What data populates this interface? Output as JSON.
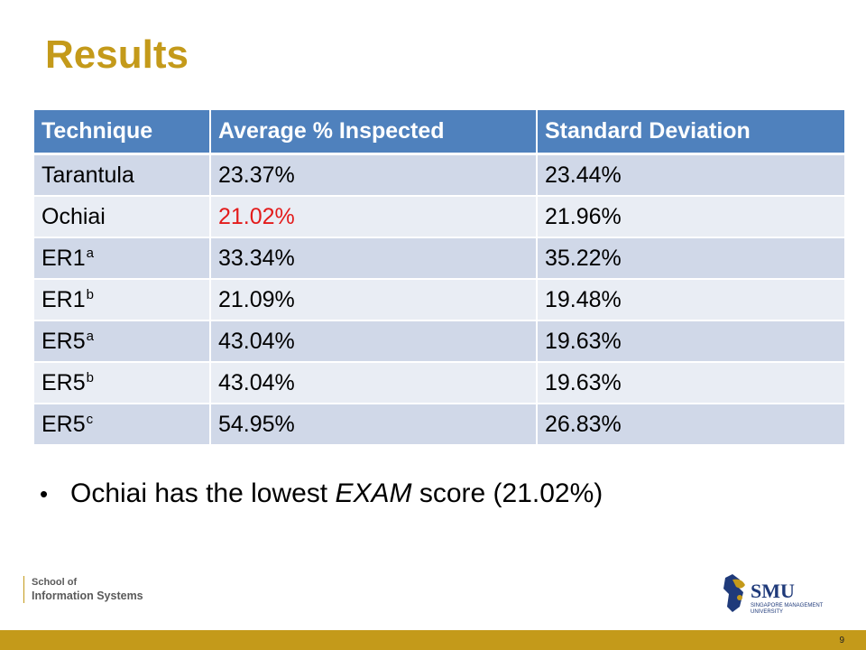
{
  "slide": {
    "title": "Results",
    "page_number": "9"
  },
  "table": {
    "headers": [
      "Technique",
      "Average % Inspected",
      "Standard Deviation"
    ],
    "rows": [
      {
        "technique": "Tarantula",
        "sup": "",
        "average": "23.37%",
        "stddev": "23.44%"
      },
      {
        "technique": "Ochiai",
        "sup": "",
        "average": "21.02%",
        "stddev": "21.96%"
      },
      {
        "technique": "ER1",
        "sup": "a",
        "average": "33.34%",
        "stddev": "35.22%"
      },
      {
        "technique": "ER1",
        "sup": "b",
        "average": "21.09%",
        "stddev": "19.48%"
      },
      {
        "technique": "ER5",
        "sup": "a",
        "average": "43.04%",
        "stddev": "19.63%"
      },
      {
        "technique": "ER5",
        "sup": "b",
        "average": "43.04%",
        "stddev": "19.63%"
      },
      {
        "technique": "ER5",
        "sup": "c",
        "average": "54.95%",
        "stddev": "26.83%"
      }
    ],
    "highlight_color": "#E31B1B",
    "header_color": "#4F81BD"
  },
  "bullet": {
    "symbol": "•",
    "before": "Ochiai has the lowest ",
    "emphasis": "EXAM",
    "after": " score (21.02%)"
  },
  "footer": {
    "school_line1": "School of",
    "school_line2": "Information Systems",
    "logo_text": "SMU",
    "logo_sub1": "SINGAPORE MANAGEMENT",
    "logo_sub2": "UNIVERSITY",
    "accent_color": "#C49A1A"
  }
}
